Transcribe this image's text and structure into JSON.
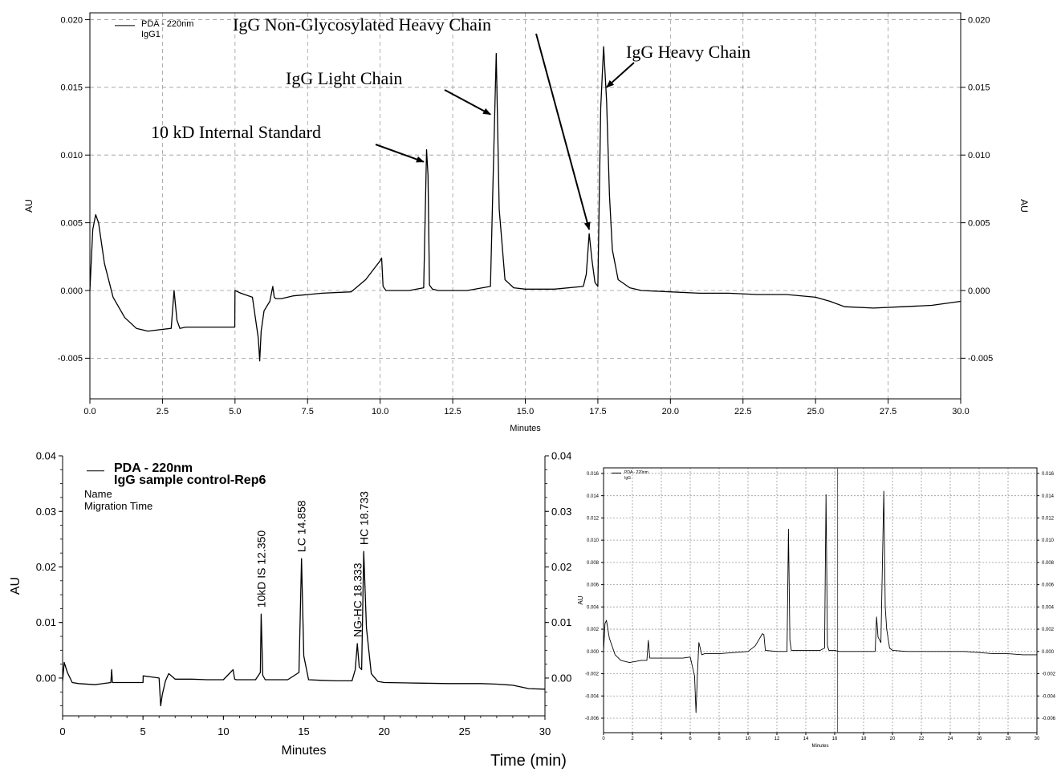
{
  "shared_xlabel": "Time (min)",
  "chart_data": [
    {
      "id": "top",
      "type": "line",
      "xlabel": "Minutes",
      "ylabel": "AU",
      "ylabel_right": "AU",
      "xlim": [
        0,
        30
      ],
      "ylim": [
        -0.008,
        0.0205
      ],
      "x_ticks": [
        "0.0",
        "2.5",
        "5.0",
        "7.5",
        "10.0",
        "12.5",
        "15.0",
        "17.5",
        "20.0",
        "22.5",
        "25.0",
        "27.5",
        "30.0"
      ],
      "x_tick_values": [
        0,
        2.5,
        5,
        7.5,
        10,
        12.5,
        15,
        17.5,
        20,
        22.5,
        25,
        27.5,
        30
      ],
      "y_ticks": [
        "0.020",
        "0.015",
        "0.010",
        "0.005",
        "0.000",
        "-0.005"
      ],
      "y_tick_values": [
        0.02,
        0.015,
        0.01,
        0.005,
        0,
        -0.005
      ],
      "grid": true,
      "legend": {
        "placement": "top-left",
        "lines": [
          "PDA - 220nm",
          "IgG1"
        ]
      },
      "annotations": [
        {
          "text": "IgG Non-Glycosylated Heavy Chain",
          "target_x": 17.2,
          "target_y": 0.0045
        },
        {
          "text": "IgG Heavy Chain",
          "target_x": 17.8,
          "target_y": 0.015
        },
        {
          "text": "IgG Light Chain",
          "target_x": 13.8,
          "target_y": 0.013
        },
        {
          "text": "10 kD Internal Standard",
          "target_x": 11.5,
          "target_y": 0.0095
        }
      ],
      "series": [
        {
          "x": [
            0,
            0.1,
            0.2,
            0.3,
            0.5,
            0.8,
            1.2,
            1.6,
            2.0,
            2.4,
            2.8,
            2.9,
            3.0,
            3.1,
            3.3,
            3.6,
            4.0,
            4.5,
            4.99,
            5.0,
            5.2,
            5.6,
            5.8,
            5.85,
            5.9,
            6.0,
            6.2,
            6.3,
            6.35,
            6.4,
            6.6,
            7.0,
            8.0,
            9.0,
            9.5,
            10.0,
            10.05,
            10.1,
            10.2,
            10.5,
            11.0,
            11.5,
            11.6,
            11.65,
            11.7,
            11.8,
            12.0,
            13.0,
            13.8,
            13.9,
            14.0,
            14.1,
            14.3,
            14.6,
            15.0,
            16.0,
            17.0,
            17.1,
            17.2,
            17.3,
            17.4,
            17.5,
            17.6,
            17.7,
            17.8,
            17.9,
            18.0,
            18.2,
            18.6,
            19.0,
            20.0,
            21.0,
            22.0,
            23.0,
            24.0,
            25.0,
            25.5,
            26.0,
            27.0,
            28.0,
            29.0,
            30.0
          ],
          "y": [
            0,
            0.0045,
            0.0056,
            0.005,
            0.002,
            -0.0005,
            -0.002,
            -0.0028,
            -0.003,
            -0.0029,
            -0.0028,
            0,
            -0.0022,
            -0.0028,
            -0.0027,
            -0.0027,
            -0.0027,
            -0.0027,
            -0.0027,
            0,
            -0.0002,
            -0.0005,
            -0.0035,
            -0.0052,
            -0.003,
            -0.0015,
            -0.0008,
            0.0003,
            -0.0005,
            -0.0006,
            -0.0006,
            -0.0004,
            -0.0002,
            -0.0001,
            0.0008,
            0.0022,
            0.0024,
            0.0003,
            0,
            0,
            0,
            0.0002,
            0.0104,
            0.0085,
            0.0004,
            0.0001,
            0,
            0,
            0.0003,
            0.009,
            0.0175,
            0.006,
            0.0008,
            0.0002,
            0.0001,
            0.0001,
            0.0003,
            0.0012,
            0.0042,
            0.0022,
            0.0006,
            0.0003,
            0.0135,
            0.018,
            0.014,
            0.007,
            0.003,
            0.0008,
            0.0002,
            0,
            -0.0001,
            -0.0002,
            -0.0002,
            -0.0003,
            -0.0003,
            -0.0005,
            -0.0008,
            -0.0012,
            -0.0013,
            -0.0012,
            -0.0011,
            -0.0008
          ]
        }
      ]
    },
    {
      "id": "bottom-left",
      "type": "line",
      "xlabel": "Minutes",
      "ylabel": "AU",
      "xlim": [
        0,
        30
      ],
      "ylim": [
        -0.0068,
        0.04
      ],
      "x_ticks": [
        "0",
        "5",
        "10",
        "15",
        "20",
        "25",
        "30"
      ],
      "x_tick_values": [
        0,
        5,
        10,
        15,
        20,
        25,
        30
      ],
      "y_ticks": [
        "0.04",
        "0.03",
        "0.02",
        "0.01",
        "0.00"
      ],
      "y_tick_values": [
        0.04,
        0.03,
        0.02,
        0.01,
        0
      ],
      "grid": false,
      "legend": {
        "placement": "top-left",
        "lines": [
          "PDA - 220nm",
          "IgG sample control-Rep6",
          "Name",
          "Migration Time"
        ]
      },
      "peak_labels": [
        {
          "text": "10kD IS  12.350",
          "x": 12.35,
          "y": 0.0115
        },
        {
          "text": "LC  14.858",
          "x": 14.858,
          "y": 0.0215
        },
        {
          "text": "NG-HC  18.333",
          "x": 18.333,
          "y": 0.0062
        },
        {
          "text": "HC  18.733",
          "x": 18.733,
          "y": 0.0228
        }
      ],
      "series": [
        {
          "x": [
            0,
            0.1,
            0.3,
            0.6,
            1.0,
            2.0,
            3.0,
            3.05,
            3.1,
            3.3,
            4.0,
            5.0,
            5.01,
            5.5,
            6.0,
            6.1,
            6.2,
            6.4,
            6.6,
            7.0,
            8.0,
            9.0,
            10.0,
            10.6,
            10.7,
            10.8,
            11.0,
            12.0,
            12.3,
            12.35,
            12.45,
            12.6,
            14.0,
            14.7,
            14.86,
            15.0,
            15.3,
            16.0,
            17.0,
            18.0,
            18.2,
            18.33,
            18.45,
            18.6,
            18.73,
            18.9,
            19.2,
            19.6,
            20.0,
            22.0,
            24.0,
            26.0,
            27.0,
            28.0,
            29.0,
            30.0
          ],
          "y": [
            -0.0005,
            0.0028,
            0.001,
            -0.0008,
            -0.001,
            -0.0012,
            -0.0008,
            0.0015,
            -0.0008,
            -0.0008,
            -0.0008,
            -0.0008,
            0.0004,
            0.0002,
            0,
            -0.005,
            -0.003,
            -0.0005,
            0.0008,
            -0.0002,
            -0.0002,
            -0.0003,
            -0.0003,
            0.0015,
            -0.0002,
            -0.0003,
            -0.0003,
            -0.0003,
            0.001,
            0.0115,
            0.0005,
            -0.0003,
            -0.0003,
            0.001,
            0.0215,
            0.004,
            -0.0003,
            -0.0004,
            -0.0005,
            -0.0005,
            0.0015,
            0.0062,
            0.002,
            0.0015,
            0.0228,
            0.009,
            0.0008,
            -0.0006,
            -0.0008,
            -0.0009,
            -0.001,
            -0.001,
            -0.0011,
            -0.0013,
            -0.0019,
            -0.002
          ]
        }
      ]
    },
    {
      "id": "bottom-right",
      "type": "line",
      "xlabel": "Minutes",
      "ylabel": "AU",
      "xlim": [
        0,
        30
      ],
      "ylim": [
        -0.0073,
        0.0165
      ],
      "x_ticks": [
        "0",
        "2",
        "4",
        "6",
        "8",
        "10",
        "12",
        "14",
        "16",
        "18",
        "20",
        "22",
        "24",
        "26",
        "28",
        "30"
      ],
      "x_tick_values": [
        0,
        2,
        4,
        6,
        8,
        10,
        12,
        14,
        16,
        18,
        20,
        22,
        24,
        26,
        28,
        30
      ],
      "y_ticks": [
        "0.016",
        "0.014",
        "0.012",
        "0.010",
        "0.008",
        "0.006",
        "0.004",
        "0.002",
        "0.000",
        "-0.002",
        "-0.004",
        "-0.006"
      ],
      "y_tick_values": [
        0.016,
        0.014,
        0.012,
        0.01,
        0.008,
        0.006,
        0.004,
        0.002,
        0,
        -0.002,
        -0.004,
        -0.006
      ],
      "grid": true,
      "legend": {
        "placement": "top-left",
        "lines": [
          "PDA - 220nm",
          "IgG"
        ]
      },
      "marker_line_x": 16.2,
      "series": [
        {
          "x": [
            0,
            0.1,
            0.2,
            0.4,
            0.8,
            1.2,
            1.8,
            2.2,
            2.6,
            3.0,
            3.1,
            3.2,
            3.5,
            4.0,
            5.0,
            5.5,
            6.0,
            6.3,
            6.4,
            6.5,
            6.6,
            6.8,
            7.0,
            7.2,
            8.0,
            9.0,
            10.0,
            10.5,
            11.0,
            11.1,
            11.2,
            12.0,
            12.7,
            12.8,
            12.9,
            13.0,
            14.0,
            15.0,
            15.3,
            15.4,
            15.5,
            15.6,
            16.0,
            16.3,
            17.0,
            18.0,
            18.8,
            18.9,
            19.0,
            19.2,
            19.4,
            19.5,
            19.6,
            19.8,
            20.0,
            21.0,
            22.0,
            23.0,
            24.0,
            25.0,
            26.0,
            27.0,
            28.0,
            29.0,
            30.0
          ],
          "y": [
            0,
            0.0025,
            0.0028,
            0.0012,
            -0.0003,
            -0.0008,
            -0.001,
            -0.0009,
            -0.0008,
            -0.0008,
            0.001,
            -0.0006,
            -0.0006,
            -0.0006,
            -0.0006,
            -0.0006,
            -0.0005,
            -0.0022,
            -0.0055,
            -0.002,
            0.0008,
            -0.0003,
            -0.0002,
            -0.0002,
            -0.0002,
            -0.0001,
            0,
            0.0005,
            0.0016,
            0.0015,
            0.0001,
            0,
            0,
            0.011,
            0.001,
            0.0001,
            0.0001,
            0.0001,
            0.0003,
            0.0141,
            0.0005,
            0.0001,
            0.0001,
            0,
            0,
            0,
            0,
            0.0031,
            0.0013,
            0.0008,
            0.0144,
            0.004,
            0.002,
            0.0003,
            0.0001,
            0,
            0,
            0,
            0,
            0,
            -0.0001,
            -0.0002,
            -0.0002,
            -0.0003,
            -0.0003
          ]
        }
      ]
    }
  ]
}
